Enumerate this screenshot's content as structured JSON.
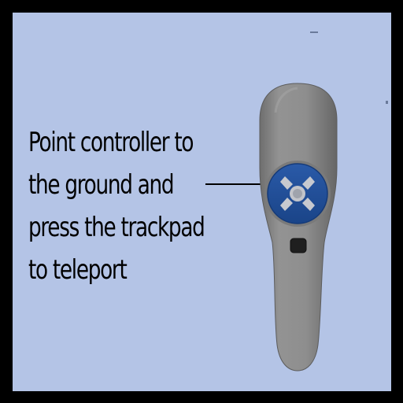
{
  "instruction": {
    "lines": [
      "Point controller to",
      "the ground and",
      "press the trackpad",
      "to teleport"
    ]
  },
  "icons": {
    "controller": "vr-controller-icon",
    "trackpad": "trackpad-icon",
    "menu_button": "menu-button-icon"
  },
  "colors": {
    "background": "#b4c4e6",
    "frame": "#000000",
    "controller_body": "#8a8a8a",
    "trackpad": "#1e4f9c",
    "text": "#000000"
  }
}
